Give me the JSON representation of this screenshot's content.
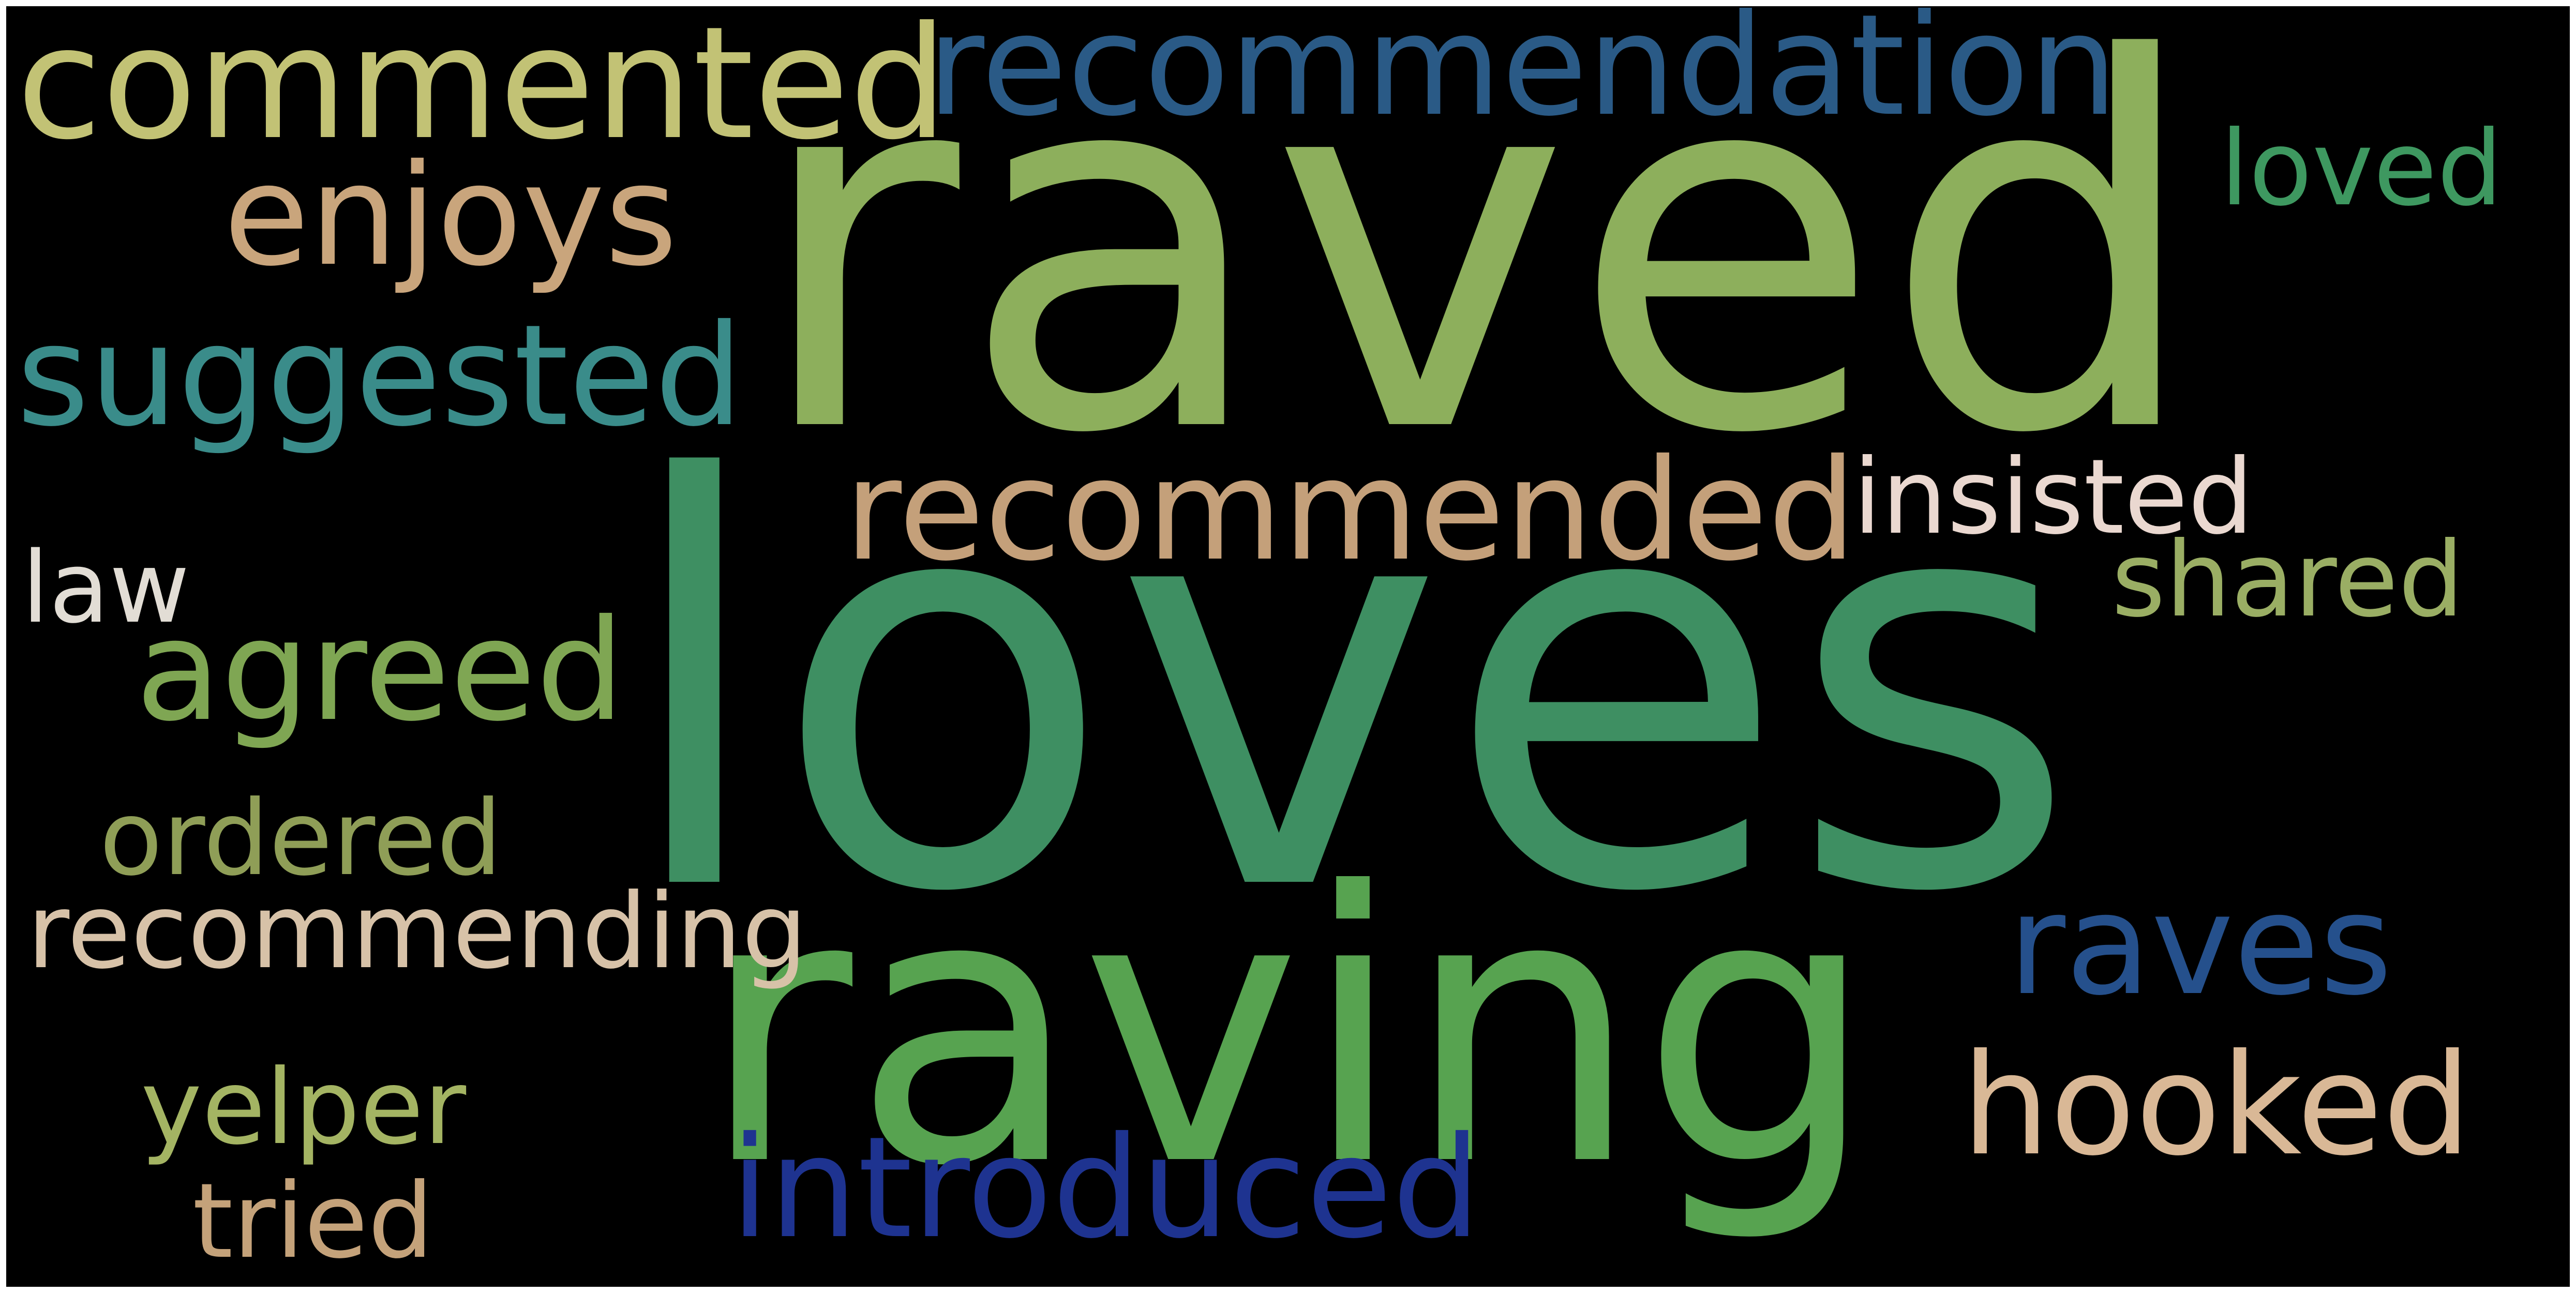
{
  "background_color": "#000000",
  "words": {
    "raved": {
      "text": "raved",
      "color": "#8daf5c"
    },
    "loves": {
      "text": "loves",
      "color": "#3e8f62"
    },
    "raving": {
      "text": "raving",
      "color": "#57a350"
    },
    "commented": {
      "text": "commented",
      "color": "#c2c275"
    },
    "recommendation": {
      "text": "recommendation",
      "color": "#2a5a86"
    },
    "enjoys": {
      "text": "enjoys",
      "color": "#c9a57c"
    },
    "suggested": {
      "text": "suggested",
      "color": "#3a8c8a"
    },
    "recommended": {
      "text": "recommended",
      "color": "#c4a07a"
    },
    "insisted": {
      "text": "insisted",
      "color": "#ead8d0"
    },
    "shared": {
      "text": "shared",
      "color": "#9aae64"
    },
    "loved": {
      "text": "loved",
      "color": "#3e9860"
    },
    "law": {
      "text": "law",
      "color": "#e2ddd5"
    },
    "agreed": {
      "text": "agreed",
      "color": "#7fa653"
    },
    "ordered": {
      "text": "ordered",
      "color": "#8f9e57"
    },
    "recommending": {
      "text": "recommending",
      "color": "#d7c2a8"
    },
    "raves": {
      "text": "raves",
      "color": "#25508c"
    },
    "hooked": {
      "text": "hooked",
      "color": "#d9b896"
    },
    "introduced": {
      "text": "introduced",
      "color": "#1e3390"
    },
    "yelper": {
      "text": "yelper",
      "color": "#a4b463"
    },
    "tried": {
      "text": "tried",
      "color": "#c4a27a"
    }
  }
}
